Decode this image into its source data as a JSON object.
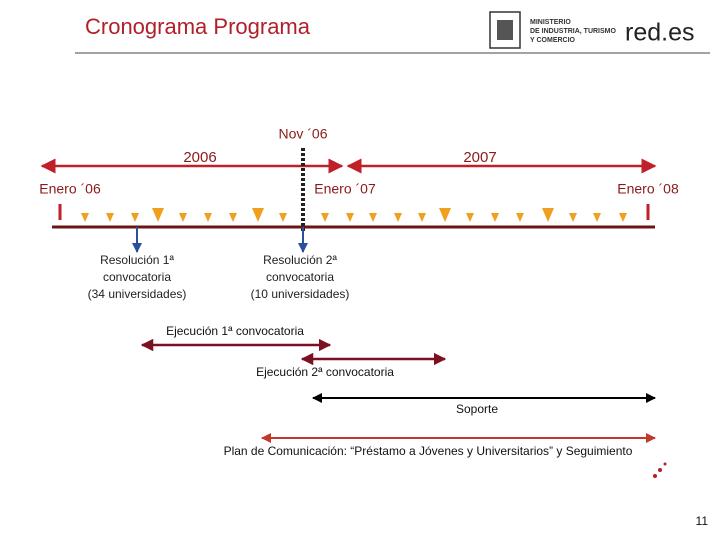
{
  "header": {
    "title": "Cronograma Programa",
    "ministry": [
      "MINISTERIO",
      "DE INDUSTRIA, TURISMO",
      "Y COMERCIO"
    ],
    "brand": "red.es"
  },
  "timeline": {
    "marker": "Nov ´06",
    "years": [
      "2006",
      "2007"
    ],
    "months": [
      "Enero ´06",
      "Enero ´07",
      "Enero ´08"
    ]
  },
  "resolutions": [
    [
      "Resolución 1ª",
      "convocatoria",
      "(34 universidades)"
    ],
    [
      "Resolución 2ª",
      "convocatoria",
      "(10 universidades)"
    ]
  ],
  "phases": [
    "Ejecución 1ª convocatoria",
    "Ejecución 2ª convocatoria",
    "Soporte",
    "Plan de Comunicación: “Préstamo a Jóvenes y Universitarios” y Seguimiento"
  ],
  "page_number": "11"
}
